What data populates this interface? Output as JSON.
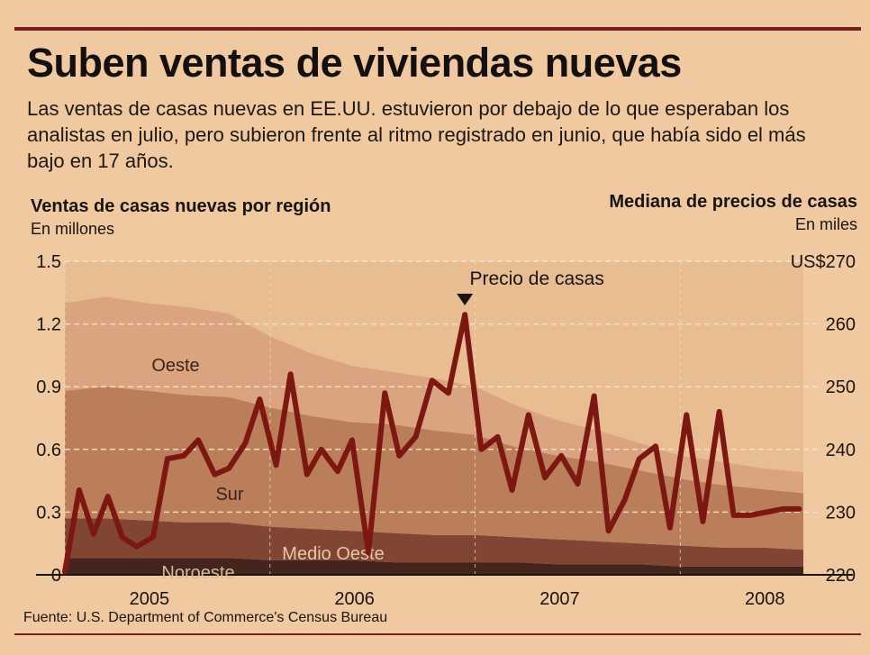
{
  "title": "Suben ventas de viviendas nuevas",
  "subtitle": "Las ventas de casas nuevas en EE.UU. estuvieron por debajo de lo que esperaban los analistas en julio, pero subieron frente al ritmo registrado en junio, que había sido el más bajo en 17 años.",
  "left_axis": {
    "title": "Ventas de casas nuevas por región",
    "unit": "En millones"
  },
  "right_axis": {
    "title": "Mediana de precios de casas",
    "unit": "En miles"
  },
  "source": "Fuente: U.S. Department of Commerce's Census Bureau",
  "colors": {
    "background": "#f0c9a0",
    "oeste": "#d8a27e",
    "sur": "#b77a58",
    "medio_oeste": "#7a3e2e",
    "noroeste": "#3b1c17",
    "price_line": "#7d1712",
    "rule": "#7a1e1c"
  },
  "chart_data": {
    "type": "area",
    "stacked": true,
    "left_ylim": [
      0,
      1.5
    ],
    "left_yticks": [
      "0",
      "0.3",
      "0.6",
      "0.9",
      "1.2",
      "1.5"
    ],
    "right_ylim": [
      220,
      270
    ],
    "right_yticks": [
      "220",
      "230",
      "240",
      "250",
      "260",
      "US$270"
    ],
    "xlim": [
      2005.0,
      2008.6
    ],
    "xticks": [
      {
        "label": "2005",
        "value": 2005.5
      },
      {
        "label": "2006",
        "value": 2006.5
      },
      {
        "label": "2007",
        "value": 2007.5
      },
      {
        "label": "2008",
        "value": 2008.5
      }
    ],
    "x": [
      2005.0,
      2005.2,
      2005.4,
      2005.6,
      2005.8,
      2006.0,
      2006.2,
      2006.4,
      2006.6,
      2006.8,
      2007.0,
      2007.2,
      2007.4,
      2007.6,
      2007.8,
      2008.0,
      2008.2,
      2008.4,
      2008.6
    ],
    "series": [
      {
        "name": "Noroeste",
        "values": [
          0.08,
          0.08,
          0.08,
          0.08,
          0.08,
          0.07,
          0.07,
          0.07,
          0.06,
          0.06,
          0.06,
          0.06,
          0.05,
          0.05,
          0.05,
          0.04,
          0.04,
          0.04,
          0.04
        ]
      },
      {
        "name": "Medio Oeste",
        "values": [
          0.19,
          0.19,
          0.18,
          0.17,
          0.17,
          0.16,
          0.15,
          0.14,
          0.14,
          0.13,
          0.13,
          0.12,
          0.12,
          0.11,
          0.1,
          0.1,
          0.09,
          0.09,
          0.08
        ]
      },
      {
        "name": "Sur",
        "values": [
          0.61,
          0.63,
          0.62,
          0.61,
          0.6,
          0.57,
          0.54,
          0.52,
          0.52,
          0.5,
          0.48,
          0.43,
          0.4,
          0.38,
          0.35,
          0.32,
          0.3,
          0.28,
          0.27
        ]
      },
      {
        "name": "Oeste",
        "values": [
          0.42,
          0.43,
          0.42,
          0.42,
          0.4,
          0.34,
          0.3,
          0.27,
          0.25,
          0.25,
          0.23,
          0.2,
          0.17,
          0.15,
          0.13,
          0.11,
          0.11,
          0.1,
          0.1
        ]
      }
    ],
    "price_series": {
      "name": "Precio de casas",
      "x": [
        2005.0,
        2005.07,
        2005.14,
        2005.21,
        2005.28,
        2005.35,
        2005.43,
        2005.5,
        2005.58,
        2005.65,
        2005.73,
        2005.8,
        2005.88,
        2005.95,
        2006.03,
        2006.1,
        2006.18,
        2006.25,
        2006.33,
        2006.4,
        2006.48,
        2006.56,
        2006.63,
        2006.71,
        2006.79,
        2006.87,
        2006.95,
        2007.03,
        2007.11,
        2007.18,
        2007.26,
        2007.34,
        2007.42,
        2007.5,
        2007.58,
        2007.65,
        2007.73,
        2007.8,
        2007.88,
        2007.95,
        2008.03,
        2008.11,
        2008.19,
        2008.26,
        2008.34,
        2008.42,
        2008.5,
        2008.58
      ],
      "values": [
        220.5,
        233.5,
        226.5,
        232.5,
        226,
        224.5,
        226,
        238.5,
        239,
        241.5,
        236,
        237,
        241,
        248,
        237.5,
        252,
        236,
        240,
        236.5,
        241.5,
        223.5,
        249,
        239,
        242,
        251,
        249,
        261.5,
        240,
        242,
        233.5,
        245.5,
        235.5,
        239,
        234.5,
        248.5,
        227,
        232,
        238.5,
        240.5,
        227.5,
        245.5,
        228.5,
        246,
        229.5,
        229.5,
        230,
        230.5,
        230.5
      ],
      "annotation": "Precio de casas",
      "annotation_x": 2006.95
    },
    "area_labels": [
      {
        "name": "Oeste"
      },
      {
        "name": "Sur"
      },
      {
        "name": "Medio Oeste"
      },
      {
        "name": "Noroeste"
      }
    ]
  }
}
